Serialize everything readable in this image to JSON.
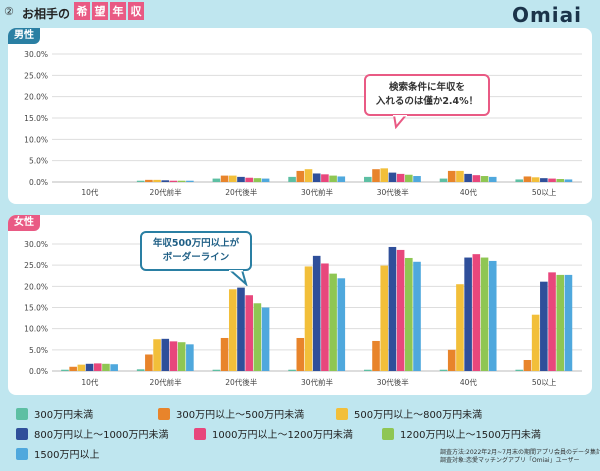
{
  "header": {
    "number": "②",
    "title_plain": "お相手の",
    "title_chars": [
      "希",
      "望",
      "年",
      "収"
    ],
    "logo": "Omiai"
  },
  "panels": [
    {
      "label": "男性",
      "color": "#2a7fa3"
    },
    {
      "label": "女性",
      "color": "#e95a84"
    }
  ],
  "callouts": [
    {
      "line1": "検索条件に年収を",
      "line2": "入れるのは僅か2.4%！",
      "border": "#e95a84",
      "text_color": "#333"
    },
    {
      "line1": "年収500万円以上が",
      "line2": "ボーダーライン",
      "border": "#2a7fa3",
      "text_color": "#1f5f85"
    }
  ],
  "legend": [
    {
      "label": "300万円未満",
      "color": "#5dbfa3"
    },
    {
      "label": "300万円以上～500万円未満",
      "color": "#e8842b"
    },
    {
      "label": "500万円以上～800万円未満",
      "color": "#f2bf3a"
    },
    {
      "label": "800万円以上～1000万円未満",
      "color": "#2f4f9a"
    },
    {
      "label": "1000万円以上～1200万円未満",
      "color": "#e8477c"
    },
    {
      "label": "1200万円以上～1500万円未満",
      "color": "#8fc653"
    },
    {
      "label": "1500万円以上",
      "color": "#4fa8dd"
    }
  ],
  "footnote": {
    "line1": "調査方法:2022年2月~7月末の期間アプリ会員のデータ集計",
    "line2": "調査対象:恋愛マッチングアプリ「Omiai」ユーザー"
  },
  "chart_data": [
    {
      "type": "bar",
      "title": "男性",
      "categories": [
        "10代",
        "20代前半",
        "20代後半",
        "30代前半",
        "30代後半",
        "40代",
        "50以上"
      ],
      "yticks": [
        "0.0%",
        "5.0%",
        "10.0%",
        "15.0%",
        "20.0%",
        "25.0%",
        "30.0%"
      ],
      "ylim": [
        0,
        30
      ],
      "series": [
        {
          "name": "300万円未満",
          "values": [
            0.0,
            0.3,
            0.8,
            1.2,
            1.2,
            0.8,
            0.6
          ]
        },
        {
          "name": "300万円以上～500万円未満",
          "values": [
            0.0,
            0.5,
            1.5,
            2.6,
            3.0,
            2.6,
            1.3
          ]
        },
        {
          "name": "500万円以上～800万円未満",
          "values": [
            0.0,
            0.5,
            1.5,
            3.0,
            3.2,
            2.6,
            1.1
          ]
        },
        {
          "name": "800万円以上～1000万円未満",
          "values": [
            0.0,
            0.4,
            1.2,
            2.0,
            2.2,
            1.9,
            0.9
          ]
        },
        {
          "name": "1000万円以上～1200万円未満",
          "values": [
            0.0,
            0.3,
            1.0,
            1.8,
            1.9,
            1.6,
            0.8
          ]
        },
        {
          "name": "1200万円以上～1500万円未満",
          "values": [
            0.0,
            0.3,
            0.9,
            1.5,
            1.7,
            1.4,
            0.7
          ]
        },
        {
          "name": "1500万円以上",
          "values": [
            0.0,
            0.3,
            0.8,
            1.3,
            1.4,
            1.2,
            0.6
          ]
        }
      ]
    },
    {
      "type": "bar",
      "title": "女性",
      "categories": [
        "10代",
        "20代前半",
        "20代後半",
        "30代前半",
        "30代後半",
        "40代",
        "50以上"
      ],
      "yticks": [
        "0.0%",
        "5.0%",
        "10.0%",
        "15.0%",
        "20.0%",
        "25.0%",
        "30.0%"
      ],
      "ylim": [
        0,
        30
      ],
      "series": [
        {
          "name": "300万円未満",
          "values": [
            0.3,
            0.4,
            0.3,
            0.3,
            0.3,
            0.3,
            0.3
          ]
        },
        {
          "name": "300万円以上～500万円未満",
          "values": [
            1.0,
            3.9,
            7.8,
            7.8,
            7.1,
            5.0,
            2.6
          ]
        },
        {
          "name": "500万円以上～800万円未満",
          "values": [
            1.5,
            7.5,
            19.3,
            24.7,
            24.9,
            20.5,
            13.3
          ]
        },
        {
          "name": "800万円以上～1000万円未満",
          "values": [
            1.7,
            7.6,
            19.7,
            27.2,
            29.3,
            26.8,
            21.1
          ]
        },
        {
          "name": "1000万円以上～1200万円未満",
          "values": [
            1.8,
            7.0,
            17.9,
            25.4,
            28.6,
            27.6,
            23.3
          ]
        },
        {
          "name": "1200万円以上～1500万円未満",
          "values": [
            1.7,
            6.8,
            16.0,
            23.0,
            26.7,
            26.8,
            22.7
          ]
        },
        {
          "name": "1500万円以上",
          "values": [
            1.6,
            6.3,
            15.0,
            21.9,
            25.8,
            26.0,
            22.7
          ]
        }
      ]
    }
  ]
}
